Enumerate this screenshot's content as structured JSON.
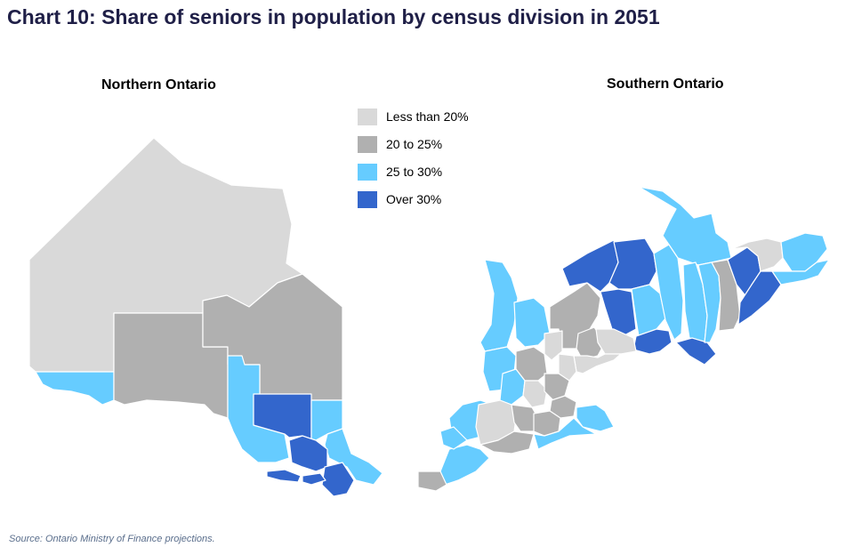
{
  "title": "Chart 10: Share of seniors in population by census division in 2051",
  "maps": {
    "north": {
      "title": "Northern Ontario"
    },
    "south": {
      "title": "Southern Ontario"
    }
  },
  "legend": [
    {
      "label": "Less than  20%",
      "color": "#d9d9d9"
    },
    {
      "label": "20 to 25%",
      "color": "#b0b0b0"
    },
    {
      "label": "25 to 30%",
      "color": "#66ccff"
    },
    {
      "label": "Over 30%",
      "color": "#3366cc"
    }
  ],
  "source": "Source: Ontario Ministry of Finance projections."
}
